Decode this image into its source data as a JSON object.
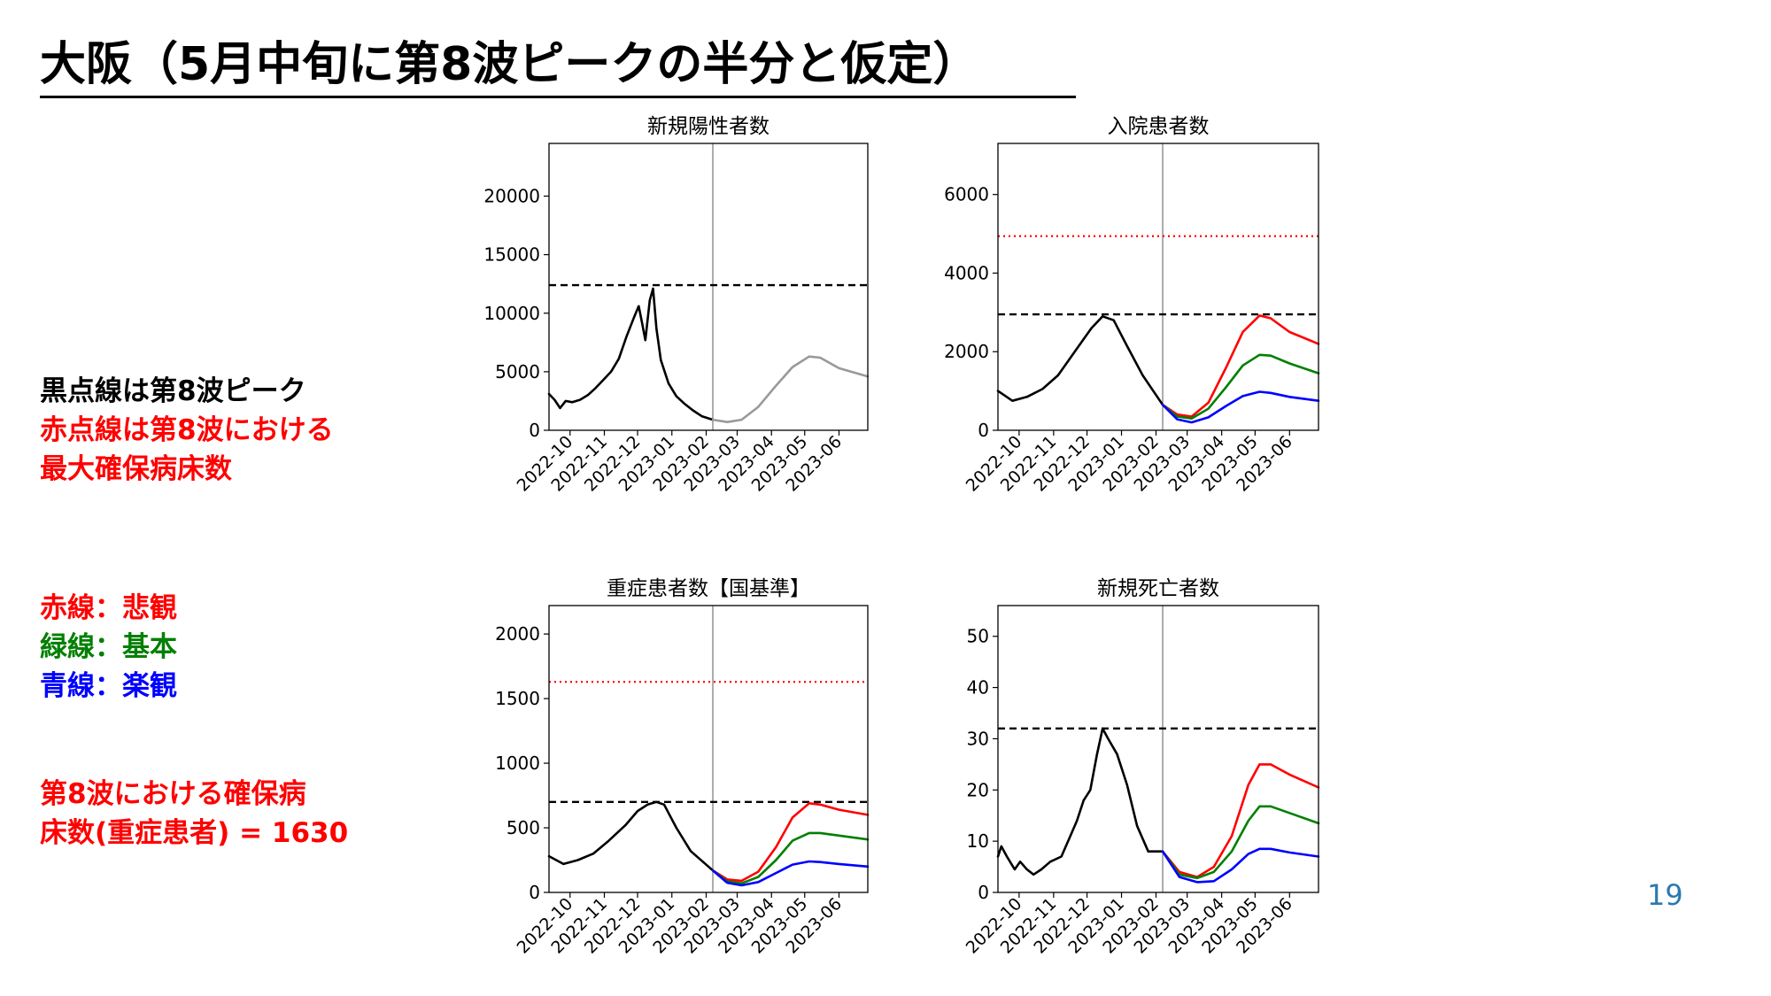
{
  "slide": {
    "title": "大阪（5月中旬に第8波ピークの半分と仮定）",
    "page_number": "19",
    "notes_1": [
      "黒点線は第8波ピーク",
      "赤点線は第8波における",
      "最大確保病床数"
    ],
    "notes_2": [
      "赤線：悲観",
      "緑線：基本",
      "青線：楽観"
    ],
    "notes_3": [
      "第8波における確保病",
      "床数(重症患者) = 1630"
    ],
    "colors": {
      "black_text": "#000000",
      "red_text": "#ff0000",
      "green_text": "#008000",
      "blue_text": "#0000ff",
      "page_number": "#2a7ab0"
    }
  },
  "chart_data": [
    {
      "type": "line",
      "title": "新規陽性者数",
      "xlim": [
        "2022-09-12",
        "2023-06-27"
      ],
      "x_ticks": [
        "2022-10",
        "2022-11",
        "2022-12",
        "2023-01",
        "2023-02",
        "2023-03",
        "2023-04",
        "2023-05",
        "2023-06"
      ],
      "ylim": [
        0,
        24500
      ],
      "y_ticks": [
        0,
        5000,
        10000,
        15000,
        20000
      ],
      "vline": "2023-02-07",
      "hlines": [
        {
          "value": 12400,
          "style": "dashed",
          "color": "#000000"
        }
      ],
      "series": [
        {
          "color": "#000000",
          "points": [
            [
              "2022-09-12",
              3100
            ],
            [
              "2022-09-17",
              2600
            ],
            [
              "2022-09-22",
              1900
            ],
            [
              "2022-09-27",
              2500
            ],
            [
              "2022-10-03",
              2400
            ],
            [
              "2022-10-10",
              2600
            ],
            [
              "2022-10-17",
              3000
            ],
            [
              "2022-10-24",
              3600
            ],
            [
              "2022-10-31",
              4300
            ],
            [
              "2022-11-07",
              5000
            ],
            [
              "2022-11-14",
              6100
            ],
            [
              "2022-11-21",
              8000
            ],
            [
              "2022-11-28",
              9700
            ],
            [
              "2022-12-02",
              10600
            ],
            [
              "2022-12-05",
              9200
            ],
            [
              "2022-12-08",
              7700
            ],
            [
              "2022-12-12",
              11100
            ],
            [
              "2022-12-15",
              12100
            ],
            [
              "2022-12-18",
              8700
            ],
            [
              "2022-12-22",
              6000
            ],
            [
              "2022-12-29",
              4000
            ],
            [
              "2023-01-05",
              2900
            ],
            [
              "2023-01-12",
              2300
            ],
            [
              "2023-01-20",
              1700
            ],
            [
              "2023-01-28",
              1200
            ],
            [
              "2023-02-07",
              900
            ]
          ]
        },
        {
          "color": "#999999",
          "points": [
            [
              "2023-02-07",
              900
            ],
            [
              "2023-02-20",
              700
            ],
            [
              "2023-03-05",
              900
            ],
            [
              "2023-03-20",
              2000
            ],
            [
              "2023-04-05",
              3800
            ],
            [
              "2023-04-20",
              5400
            ],
            [
              "2023-05-05",
              6300
            ],
            [
              "2023-05-15",
              6200
            ],
            [
              "2023-06-01",
              5300
            ],
            [
              "2023-06-27",
              4600
            ]
          ]
        }
      ]
    },
    {
      "type": "line",
      "title": "入院患者数",
      "xlim": [
        "2022-09-12",
        "2023-06-27"
      ],
      "x_ticks": [
        "2022-10",
        "2022-11",
        "2022-12",
        "2023-01",
        "2023-02",
        "2023-03",
        "2023-04",
        "2023-05",
        "2023-06"
      ],
      "ylim": [
        0,
        7300
      ],
      "y_ticks": [
        0,
        2000,
        4000,
        6000
      ],
      "vline": "2023-02-07",
      "hlines": [
        {
          "value": 4940,
          "style": "dotted",
          "color": "#ff0000"
        },
        {
          "value": 2950,
          "style": "dashed",
          "color": "#000000"
        }
      ],
      "series": [
        {
          "color": "#000000",
          "points": [
            [
              "2022-09-12",
              1000
            ],
            [
              "2022-09-25",
              750
            ],
            [
              "2022-10-08",
              850
            ],
            [
              "2022-10-22",
              1050
            ],
            [
              "2022-11-05",
              1400
            ],
            [
              "2022-11-20",
              2000
            ],
            [
              "2022-12-05",
              2600
            ],
            [
              "2022-12-15",
              2900
            ],
            [
              "2022-12-25",
              2800
            ],
            [
              "2023-01-05",
              2200
            ],
            [
              "2023-01-20",
              1400
            ],
            [
              "2023-02-07",
              650
            ]
          ]
        },
        {
          "color": "#ff0000",
          "points": [
            [
              "2023-02-07",
              650
            ],
            [
              "2023-02-20",
              400
            ],
            [
              "2023-03-05",
              350
            ],
            [
              "2023-03-20",
              700
            ],
            [
              "2023-04-05",
              1600
            ],
            [
              "2023-04-20",
              2500
            ],
            [
              "2023-05-05",
              2920
            ],
            [
              "2023-05-15",
              2850
            ],
            [
              "2023-06-01",
              2500
            ],
            [
              "2023-06-27",
              2200
            ]
          ]
        },
        {
          "color": "#008000",
          "points": [
            [
              "2023-02-07",
              650
            ],
            [
              "2023-02-20",
              350
            ],
            [
              "2023-03-05",
              300
            ],
            [
              "2023-03-20",
              550
            ],
            [
              "2023-04-05",
              1100
            ],
            [
              "2023-04-20",
              1650
            ],
            [
              "2023-05-05",
              1920
            ],
            [
              "2023-05-15",
              1900
            ],
            [
              "2023-06-01",
              1700
            ],
            [
              "2023-06-27",
              1450
            ]
          ]
        },
        {
          "color": "#0000ff",
          "points": [
            [
              "2023-02-07",
              650
            ],
            [
              "2023-02-20",
              280
            ],
            [
              "2023-03-05",
              200
            ],
            [
              "2023-03-20",
              330
            ],
            [
              "2023-04-05",
              620
            ],
            [
              "2023-04-20",
              870
            ],
            [
              "2023-05-05",
              980
            ],
            [
              "2023-05-15",
              950
            ],
            [
              "2023-06-01",
              850
            ],
            [
              "2023-06-27",
              750
            ]
          ]
        }
      ]
    },
    {
      "type": "line",
      "title": "重症患者数【国基準】",
      "xlim": [
        "2022-09-12",
        "2023-06-27"
      ],
      "x_ticks": [
        "2022-10",
        "2022-11",
        "2022-12",
        "2023-01",
        "2023-02",
        "2023-03",
        "2023-04",
        "2023-05",
        "2023-06"
      ],
      "ylim": [
        0,
        2220
      ],
      "y_ticks": [
        0,
        500,
        1000,
        1500,
        2000
      ],
      "vline": "2023-02-07",
      "hlines": [
        {
          "value": 1630,
          "style": "dotted",
          "color": "#ff0000"
        },
        {
          "value": 700,
          "style": "dashed",
          "color": "#000000"
        }
      ],
      "series": [
        {
          "color": "#000000",
          "points": [
            [
              "2022-09-12",
              280
            ],
            [
              "2022-09-25",
              220
            ],
            [
              "2022-10-08",
              250
            ],
            [
              "2022-10-22",
              300
            ],
            [
              "2022-11-05",
              400
            ],
            [
              "2022-11-20",
              520
            ],
            [
              "2022-12-01",
              630
            ],
            [
              "2022-12-10",
              680
            ],
            [
              "2022-12-18",
              700
            ],
            [
              "2022-12-25",
              680
            ],
            [
              "2023-01-05",
              500
            ],
            [
              "2023-01-18",
              320
            ],
            [
              "2023-02-07",
              170
            ]
          ]
        },
        {
          "color": "#ff0000",
          "points": [
            [
              "2023-02-07",
              170
            ],
            [
              "2023-02-20",
              100
            ],
            [
              "2023-03-05",
              90
            ],
            [
              "2023-03-20",
              160
            ],
            [
              "2023-04-05",
              350
            ],
            [
              "2023-04-20",
              580
            ],
            [
              "2023-05-05",
              690
            ],
            [
              "2023-05-15",
              680
            ],
            [
              "2023-06-01",
              640
            ],
            [
              "2023-06-27",
              600
            ]
          ]
        },
        {
          "color": "#008000",
          "points": [
            [
              "2023-02-07",
              170
            ],
            [
              "2023-02-20",
              85
            ],
            [
              "2023-03-05",
              70
            ],
            [
              "2023-03-20",
              120
            ],
            [
              "2023-04-05",
              250
            ],
            [
              "2023-04-20",
              400
            ],
            [
              "2023-05-05",
              460
            ],
            [
              "2023-05-15",
              460
            ],
            [
              "2023-06-01",
              440
            ],
            [
              "2023-06-27",
              410
            ]
          ]
        },
        {
          "color": "#0000ff",
          "points": [
            [
              "2023-02-07",
              170
            ],
            [
              "2023-02-20",
              75
            ],
            [
              "2023-03-05",
              55
            ],
            [
              "2023-03-20",
              80
            ],
            [
              "2023-04-05",
              150
            ],
            [
              "2023-04-20",
              215
            ],
            [
              "2023-05-05",
              240
            ],
            [
              "2023-05-15",
              235
            ],
            [
              "2023-06-01",
              220
            ],
            [
              "2023-06-27",
              200
            ]
          ]
        }
      ]
    },
    {
      "type": "line",
      "title": "新規死亡者数",
      "xlim": [
        "2022-09-12",
        "2023-06-27"
      ],
      "x_ticks": [
        "2022-10",
        "2022-11",
        "2022-12",
        "2023-01",
        "2023-02",
        "2023-03",
        "2023-04",
        "2023-05",
        "2023-06"
      ],
      "ylim": [
        0,
        56
      ],
      "y_ticks": [
        0,
        10,
        20,
        30,
        40,
        50
      ],
      "vline": "2023-02-07",
      "hlines": [
        {
          "value": 32,
          "style": "dashed",
          "color": "#000000"
        }
      ],
      "series": [
        {
          "color": "#000000",
          "points": [
            [
              "2022-09-12",
              7
            ],
            [
              "2022-09-15",
              9
            ],
            [
              "2022-09-20",
              7
            ],
            [
              "2022-09-27",
              4.5
            ],
            [
              "2022-10-02",
              6
            ],
            [
              "2022-10-08",
              4.5
            ],
            [
              "2022-10-14",
              3.5
            ],
            [
              "2022-10-21",
              4.5
            ],
            [
              "2022-10-29",
              6
            ],
            [
              "2022-11-08",
              7
            ],
            [
              "2022-11-16",
              11
            ],
            [
              "2022-11-22",
              14
            ],
            [
              "2022-11-28",
              18
            ],
            [
              "2022-12-04",
              20
            ],
            [
              "2022-12-10",
              27
            ],
            [
              "2022-12-15",
              32
            ],
            [
              "2022-12-20",
              30
            ],
            [
              "2022-12-28",
              27
            ],
            [
              "2023-01-06",
              21
            ],
            [
              "2023-01-15",
              13
            ],
            [
              "2023-01-25",
              8
            ],
            [
              "2023-02-07",
              8
            ]
          ]
        },
        {
          "color": "#ff0000",
          "points": [
            [
              "2023-02-07",
              8
            ],
            [
              "2023-02-22",
              4
            ],
            [
              "2023-03-10",
              3
            ],
            [
              "2023-03-25",
              5
            ],
            [
              "2023-04-10",
              11
            ],
            [
              "2023-04-25",
              21
            ],
            [
              "2023-05-05",
              25
            ],
            [
              "2023-05-15",
              25
            ],
            [
              "2023-06-01",
              23
            ],
            [
              "2023-06-27",
              20.5
            ]
          ]
        },
        {
          "color": "#008000",
          "points": [
            [
              "2023-02-07",
              8
            ],
            [
              "2023-02-22",
              3.5
            ],
            [
              "2023-03-10",
              2.8
            ],
            [
              "2023-03-25",
              4
            ],
            [
              "2023-04-10",
              8
            ],
            [
              "2023-04-25",
              14
            ],
            [
              "2023-05-05",
              16.8
            ],
            [
              "2023-05-15",
              16.8
            ],
            [
              "2023-06-01",
              15.5
            ],
            [
              "2023-06-27",
              13.5
            ]
          ]
        },
        {
          "color": "#0000ff",
          "points": [
            [
              "2023-02-07",
              8
            ],
            [
              "2023-02-22",
              3
            ],
            [
              "2023-03-10",
              2
            ],
            [
              "2023-03-25",
              2.2
            ],
            [
              "2023-04-10",
              4.5
            ],
            [
              "2023-04-25",
              7.5
            ],
            [
              "2023-05-05",
              8.5
            ],
            [
              "2023-05-15",
              8.5
            ],
            [
              "2023-06-01",
              7.8
            ],
            [
              "2023-06-27",
              7
            ]
          ]
        }
      ]
    }
  ]
}
